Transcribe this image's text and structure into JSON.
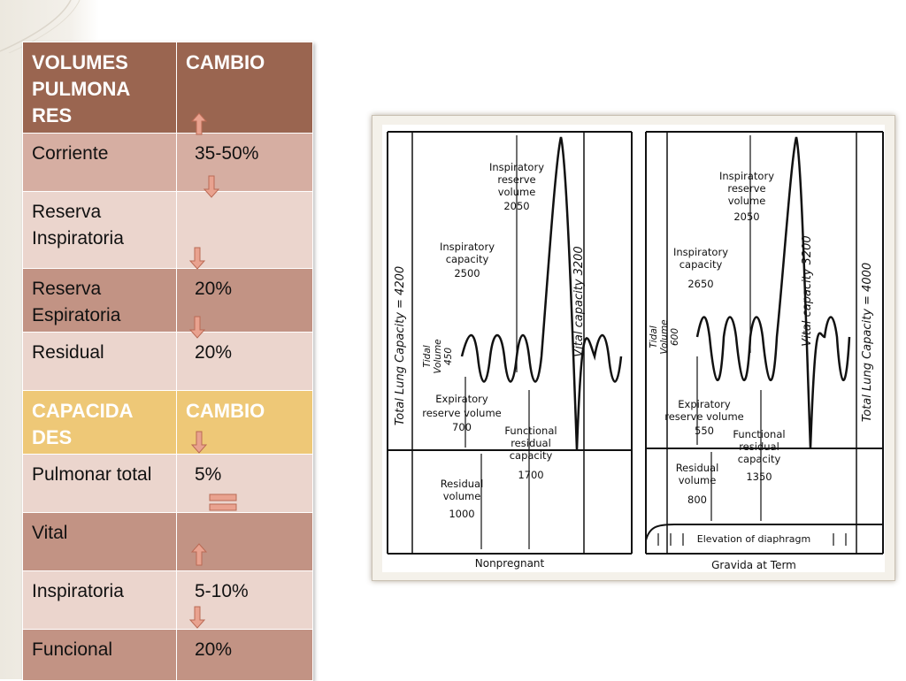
{
  "table": {
    "header1": {
      "col1": "VOLUMES PULMONA RES",
      "col2": "CAMBIO"
    },
    "volumes": [
      {
        "label": "Corriente",
        "value": "35-50%"
      },
      {
        "label": "Reserva Inspiratoria",
        "value": ""
      },
      {
        "label": "Reserva Espiratoria",
        "value": "20%"
      },
      {
        "label": "Residual",
        "value": " 20%"
      }
    ],
    "header2": {
      "col1": "CAPACIDA DES",
      "col2": "CAMBIO"
    },
    "capacities": [
      {
        "label": "Pulmonar total",
        "value": "5%"
      },
      {
        "label": "Vital",
        "value": ""
      },
      {
        "label": "Inspiratoria",
        "value": "5-10%"
      },
      {
        "label": "Funcional",
        "value": "20%"
      }
    ],
    "arrow_colors": {
      "fill": "#e9a28f",
      "stroke": "#b96a55"
    }
  },
  "figure": {
    "left": {
      "inspiratory_reserve": [
        "Inspiratory",
        "reserve",
        "volume",
        "2050"
      ],
      "inspiratory_capacity": [
        "Inspiratory",
        "capacity",
        "2500"
      ],
      "tidal": [
        "Tidal",
        "Volume",
        "450"
      ],
      "expiratory_reserve": [
        "Expiratory",
        "reserve volume",
        "700"
      ],
      "functional_residual": [
        "Functional",
        "residual",
        "capacity",
        "1700"
      ],
      "residual": [
        "Residual",
        "volume",
        "1000"
      ],
      "vital_capacity": "Vital capacity 3200",
      "total_lung_capacity": "Total Lung Capacity = 4200",
      "caption": "Nonpregnant"
    },
    "right": {
      "inspiratory_reserve": [
        "Inspiratory",
        "reserve",
        "volume",
        "2050"
      ],
      "inspiratory_capacity": [
        "Inspiratory",
        "capacity",
        "2650"
      ],
      "tidal": [
        "Tidal",
        "Volume",
        "600"
      ],
      "expiratory_reserve": [
        "Expiratory",
        "reserve volume",
        "550"
      ],
      "functional_residual": [
        "Functional",
        "residual",
        "capacity",
        "1350"
      ],
      "residual": [
        "Residual",
        "volume",
        "800"
      ],
      "vital_capacity": "Vital capacity 3200",
      "total_lung_capacity": "Total Lung Capacity = 4000",
      "caption": "Gravida at Term",
      "diaphragm": "Elevation of diaphragm"
    }
  }
}
